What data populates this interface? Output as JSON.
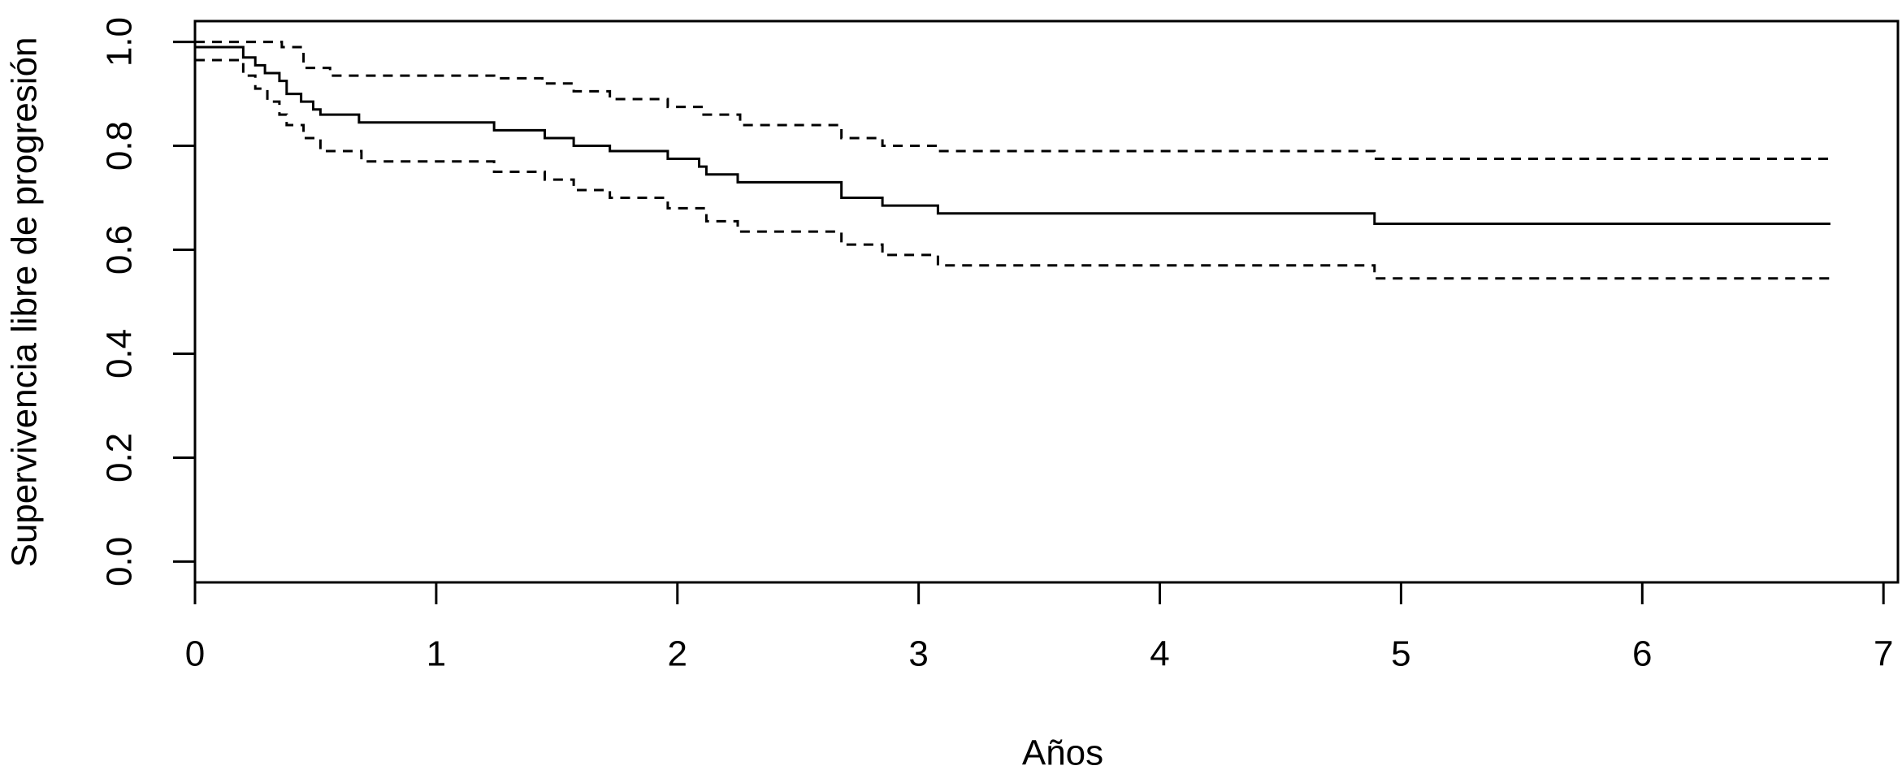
{
  "chart_data": {
    "type": "step",
    "xlabel": "Años",
    "ylabel": "Supervivencia libre de progresión",
    "xlim": [
      0,
      7.06
    ],
    "ylim": [
      -0.04,
      1.04
    ],
    "xticks": [
      0,
      1,
      2,
      3,
      4,
      5,
      6,
      7
    ],
    "yticks": [
      {
        "value": 0,
        "label": "0.0"
      },
      0.2,
      0.4,
      0.6,
      0.8,
      {
        "value": 1,
        "label": "1.0"
      }
    ],
    "series": [
      {
        "color": "#000000",
        "dashed": false,
        "x": [
          0,
          0.2,
          0.25,
          0.29,
          0.35,
          0.38,
          0.44,
          0.49,
          0.52,
          0.68,
          1.24,
          1.45,
          1.57,
          1.72,
          1.96,
          2.09,
          2.12,
          2.25,
          2.68,
          2.85,
          3.08,
          4.89,
          6.78
        ],
        "values": [
          0.99,
          0.97,
          0.955,
          0.94,
          0.925,
          0.9,
          0.885,
          0.87,
          0.86,
          0.845,
          0.83,
          0.815,
          0.8,
          0.79,
          0.775,
          0.76,
          0.745,
          0.73,
          0.7,
          0.685,
          0.67,
          0.65,
          0.65
        ]
      },
      {
        "color": "#000000",
        "dashed": true,
        "x": [
          0,
          0.36,
          0.45,
          0.56,
          1.24,
          1.44,
          1.57,
          1.72,
          1.96,
          2.1,
          2.26,
          2.68,
          2.85,
          3.08,
          4.89,
          6.78
        ],
        "values": [
          1.0,
          0.99,
          0.95,
          0.935,
          0.93,
          0.92,
          0.905,
          0.89,
          0.875,
          0.86,
          0.84,
          0.815,
          0.8,
          0.79,
          0.775,
          0.775
        ]
      },
      {
        "color": "#000000",
        "dashed": true,
        "x": [
          0,
          0.2,
          0.25,
          0.3,
          0.35,
          0.38,
          0.45,
          0.52,
          0.69,
          1.24,
          1.45,
          1.57,
          1.72,
          1.96,
          2.12,
          2.25,
          2.68,
          2.85,
          3.08,
          4.89,
          6.78
        ],
        "values": [
          0.965,
          0.935,
          0.91,
          0.885,
          0.86,
          0.84,
          0.815,
          0.79,
          0.77,
          0.75,
          0.735,
          0.715,
          0.7,
          0.68,
          0.655,
          0.635,
          0.61,
          0.59,
          0.57,
          0.545,
          0.545
        ]
      }
    ]
  }
}
